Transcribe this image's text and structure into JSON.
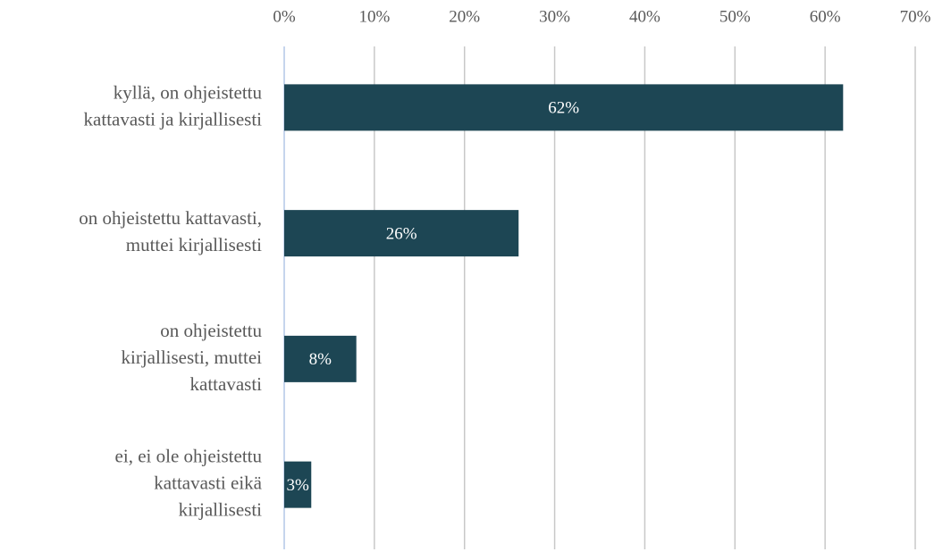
{
  "chart_data": {
    "type": "bar",
    "orientation": "horizontal",
    "categories": [
      "kyllä, on ohjeistettu\nkattavasti ja kirjallisesti",
      "on ohjeistettu kattavasti,\nmuttei kirjallisesti",
      "on ohjeistettu\nkirjallisesti, muttei\nkattavasti",
      "ei, ei ole ohjeistettu\nkattavasti eikä\nkirjallisesti"
    ],
    "values": [
      62,
      26,
      8,
      3
    ],
    "value_labels": [
      "62%",
      "26%",
      "8%",
      "3%"
    ],
    "color": "#1d4654",
    "xlim": [
      0,
      70
    ],
    "xticks": [
      {
        "value": 0,
        "label": "0%"
      },
      {
        "value": 10,
        "label": "10%"
      },
      {
        "value": 20,
        "label": "20%"
      },
      {
        "value": 30,
        "label": "30%"
      },
      {
        "value": 40,
        "label": "40%"
      },
      {
        "value": 50,
        "label": "50%"
      },
      {
        "value": 60,
        "label": "60%"
      },
      {
        "value": 70,
        "label": "70%"
      }
    ],
    "grid": true
  }
}
